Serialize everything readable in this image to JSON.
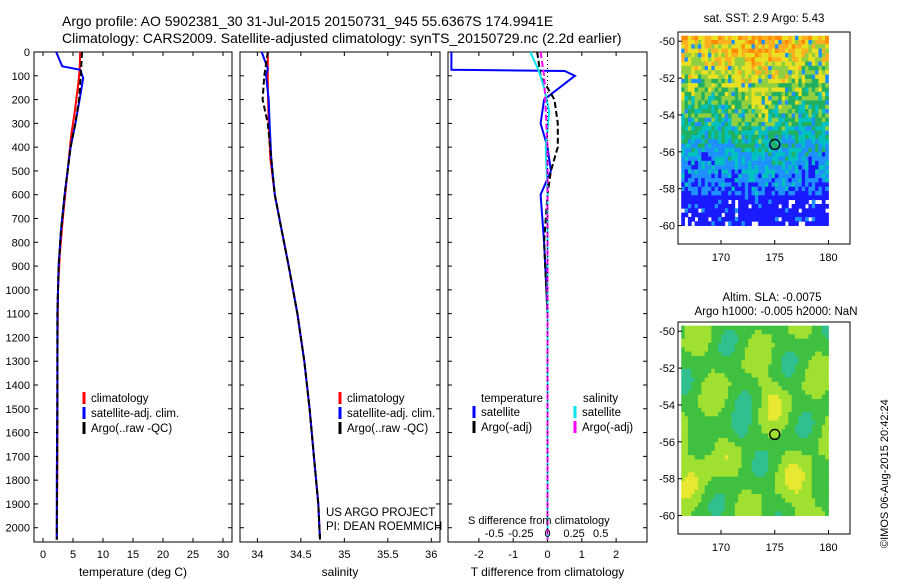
{
  "header": {
    "line1": "Argo profile: AO 5902381_30 31-Jul-2015 20150731_945 55.6367S 174.9941E",
    "line2": "Climatology: CARS2009. Satellite-adjusted climatology: synTS_20150729.nc (2.2d earlier)"
  },
  "colors": {
    "clim": "#ff0000",
    "sat": "#0000ff",
    "argo": "#000000",
    "sal_sat": "#00e5ee",
    "sal_argo": "#ff00ff"
  },
  "depth_axis": {
    "ticks": [
      0,
      100,
      200,
      300,
      400,
      500,
      600,
      700,
      800,
      900,
      1000,
      1100,
      1200,
      1300,
      1400,
      1500,
      1600,
      1700,
      1800,
      1900,
      2000
    ],
    "ylim": [
      0,
      2060
    ]
  },
  "chart_data": [
    {
      "type": "line",
      "id": "temperature",
      "xlabel": "temperature (deg C)",
      "xlim": [
        -1.5,
        31.5
      ],
      "xticks": [
        0,
        5,
        10,
        15,
        20,
        25,
        30
      ],
      "legend": [
        "climatology",
        "satellite-adj. clim.",
        "Argo(..raw -QC)"
      ],
      "series": [
        {
          "name": "climatology",
          "color_key": "clim",
          "x": [
            6.2,
            6.1,
            5.8,
            5.3,
            4.7,
            4.3,
            3.9,
            3.3,
            2.8,
            2.5,
            2.4,
            2.4,
            2.3
          ],
          "y": [
            0,
            80,
            150,
            250,
            350,
            450,
            550,
            700,
            850,
            1000,
            1300,
            1700,
            2050
          ]
        },
        {
          "name": "satellite-adj. clim.",
          "color_key": "sat",
          "x": [
            2.2,
            3.2,
            6.2,
            6.7,
            6.1,
            5.4,
            4.6,
            4.1,
            3.6,
            3.0,
            2.6,
            2.4,
            2.4,
            2.3,
            2.3
          ],
          "y": [
            0,
            60,
            75,
            110,
            200,
            300,
            400,
            500,
            600,
            750,
            900,
            1100,
            1400,
            1800,
            2050
          ]
        },
        {
          "name": "Argo(..raw -QC)",
          "color_key": "argo",
          "x": [
            6.5,
            6.3,
            6.0,
            5.4,
            4.6,
            4.1,
            3.6,
            3.0,
            2.6,
            2.4,
            2.4,
            2.3
          ],
          "y": [
            0,
            100,
            200,
            300,
            400,
            500,
            600,
            750,
            900,
            1100,
            1500,
            2050
          ]
        }
      ]
    },
    {
      "type": "line",
      "id": "salinity",
      "xlabel": "salinity",
      "xlim": [
        33.8,
        36.1
      ],
      "xticks": [
        34,
        34.5,
        35,
        35.5,
        36
      ],
      "xtick_labels": [
        "34",
        "34.5",
        "35",
        "35.5",
        "36"
      ],
      "legend": [
        "climatology",
        "satellite-adj. clim.",
        "Argo(..raw -QC)"
      ],
      "annotation": [
        "US ARGO PROJECT",
        "PI: DEAN ROEMMICH"
      ],
      "series": [
        {
          "name": "climatology",
          "color_key": "clim",
          "x": [
            34.12,
            34.12,
            34.13,
            34.15,
            34.2,
            34.28,
            34.36,
            34.46,
            34.54,
            34.6,
            34.65,
            34.7,
            34.72
          ],
          "y": [
            0,
            150,
            300,
            450,
            600,
            750,
            900,
            1100,
            1300,
            1500,
            1700,
            1900,
            2050
          ]
        },
        {
          "name": "satellite-adj. clim.",
          "color_key": "sat",
          "x": [
            34.05,
            34.12,
            34.1,
            34.13,
            34.14,
            34.16,
            34.2,
            34.28,
            34.36,
            34.46,
            34.54,
            34.6,
            34.65,
            34.7,
            34.72
          ],
          "y": [
            0,
            70,
            100,
            200,
            300,
            450,
            600,
            750,
            900,
            1100,
            1300,
            1500,
            1700,
            1900,
            2050
          ]
        },
        {
          "name": "Argo(..raw -QC)",
          "color_key": "argo",
          "x": [
            34.12,
            34.08,
            34.06,
            34.12,
            34.16,
            34.2,
            34.28,
            34.36,
            34.46,
            34.54,
            34.6,
            34.65,
            34.7,
            34.72
          ],
          "y": [
            0,
            100,
            200,
            300,
            450,
            600,
            750,
            900,
            1100,
            1300,
            1500,
            1700,
            1900,
            2050
          ]
        }
      ]
    },
    {
      "type": "line",
      "id": "difference",
      "xlabel": "T difference from climatology",
      "top_label": "S difference from climatology",
      "xlim": [
        -2.9,
        2.9
      ],
      "xticks": [
        -2,
        -1,
        0,
        1,
        2
      ],
      "s_xticks": [
        -0.5,
        -0.25,
        0,
        0.25,
        0.5
      ],
      "s_tick_labels": [
        "-0.5",
        "-0.25",
        "0",
        "0.25",
        "0.5"
      ],
      "legend_temp_title": "temperature",
      "legend_sal_title": "salinity",
      "legend_temp": [
        "satellite",
        "Argo(-adj)"
      ],
      "legend_sal": [
        "satellite",
        "Argo(-adj)"
      ],
      "series": [
        {
          "name": "T satellite",
          "color_key": "sat",
          "x": [
            -2.8,
            -2.8,
            0.5,
            0.8,
            -0.1,
            -0.2,
            0,
            0.1,
            -0.2,
            -0.1,
            0,
            0,
            0
          ],
          "y": [
            0,
            75,
            80,
            100,
            200,
            300,
            400,
            500,
            600,
            800,
            1100,
            1500,
            2050
          ]
        },
        {
          "name": "T Argo(-adj)",
          "color_key": "argo",
          "x": [
            -0.3,
            -0.2,
            0.2,
            0.3,
            0.3,
            0.1,
            0,
            -0.1,
            0,
            0,
            0
          ],
          "y": [
            0,
            100,
            200,
            300,
            400,
            500,
            600,
            800,
            1100,
            1500,
            2050
          ]
        },
        {
          "name": "S satellite",
          "color_key": "sal_sat",
          "x": [
            -0.5,
            -0.25,
            -0.1,
            0.05,
            -0.05,
            0,
            0,
            0,
            0
          ],
          "y": [
            0,
            80,
            150,
            250,
            400,
            600,
            900,
            1400,
            2050
          ]
        },
        {
          "name": "S Argo(-adj)",
          "color_key": "sal_argo",
          "x": [
            -0.2,
            -0.1,
            -0.05,
            0,
            0,
            0,
            0
          ],
          "y": [
            0,
            100,
            250,
            400,
            700,
            1200,
            2050
          ]
        }
      ]
    },
    {
      "type": "heatmap",
      "id": "sst-map",
      "title": "sat. SST: 2.9 Argo: 5.43",
      "xlim": [
        166,
        182
      ],
      "ylim": [
        -61,
        -49.5
      ],
      "xticks": [
        170,
        175,
        180
      ],
      "yticks": [
        -50,
        -52,
        -54,
        -56,
        -58,
        -60
      ],
      "argo_marker": {
        "lon": 175.0,
        "lat": -55.6
      }
    },
    {
      "type": "heatmap",
      "id": "sla-map",
      "title_line1": "Altim. SLA: -0.0075",
      "title_line2": "Argo h1000: -0.005 h2000: NaN",
      "xlim": [
        166,
        182
      ],
      "ylim": [
        -61,
        -49.5
      ],
      "xticks": [
        170,
        175,
        180
      ],
      "yticks": [
        -50,
        -52,
        -54,
        -56,
        -58,
        -60
      ],
      "argo_marker": {
        "lon": 175.0,
        "lat": -55.6
      }
    }
  ],
  "watermark": "©IMOS 06-Aug-2015 20:42:24"
}
